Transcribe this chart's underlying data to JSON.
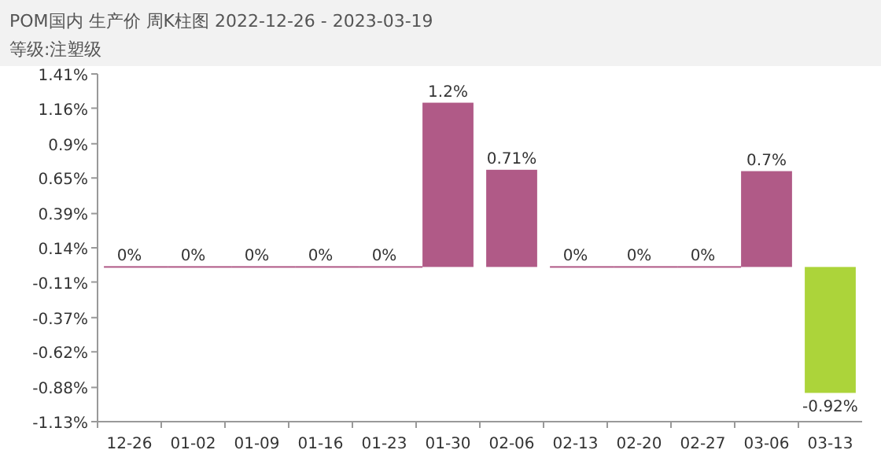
{
  "chart_data": {
    "type": "bar",
    "title": "POM国内 生产价 周K柱图 2022-12-26 - 2023-03-19",
    "subtitle": "等级:注塑级",
    "categories": [
      "12-26",
      "01-02",
      "01-09",
      "01-16",
      "01-23",
      "01-30",
      "02-06",
      "02-13",
      "02-20",
      "02-27",
      "03-06",
      "03-13"
    ],
    "values": [
      0,
      0,
      0,
      0,
      0,
      1.2,
      0.71,
      0,
      0,
      0,
      0.7,
      -0.92
    ],
    "colors": [
      "#b05a87",
      "#b05a87",
      "#b05a87",
      "#b05a87",
      "#b05a87",
      "#b05a87",
      "#b05a87",
      "#b05a87",
      "#b05a87",
      "#b05a87",
      "#b05a87",
      "#acd43a"
    ],
    "value_labels": [
      "0%",
      "0%",
      "0%",
      "0%",
      "0%",
      "1.2%",
      "0.71%",
      "0%",
      "0%",
      "0%",
      "0.7%",
      "-0.92%"
    ],
    "ylim": [
      -1.13,
      1.41
    ],
    "yticks": [
      {
        "value": 1.41,
        "label": "1.41%"
      },
      {
        "value": 1.16,
        "label": "1.16%"
      },
      {
        "value": 0.9,
        "label": "0.9%"
      },
      {
        "value": 0.65,
        "label": "0.65%"
      },
      {
        "value": 0.39,
        "label": "0.39%"
      },
      {
        "value": 0.14,
        "label": "0.14%"
      },
      {
        "value": -0.11,
        "label": "-0.11%"
      },
      {
        "value": -0.37,
        "label": "-0.37%"
      },
      {
        "value": -0.62,
        "label": "-0.62%"
      },
      {
        "value": -0.88,
        "label": "-0.88%"
      },
      {
        "value": -1.13,
        "label": "-1.13%"
      }
    ]
  }
}
